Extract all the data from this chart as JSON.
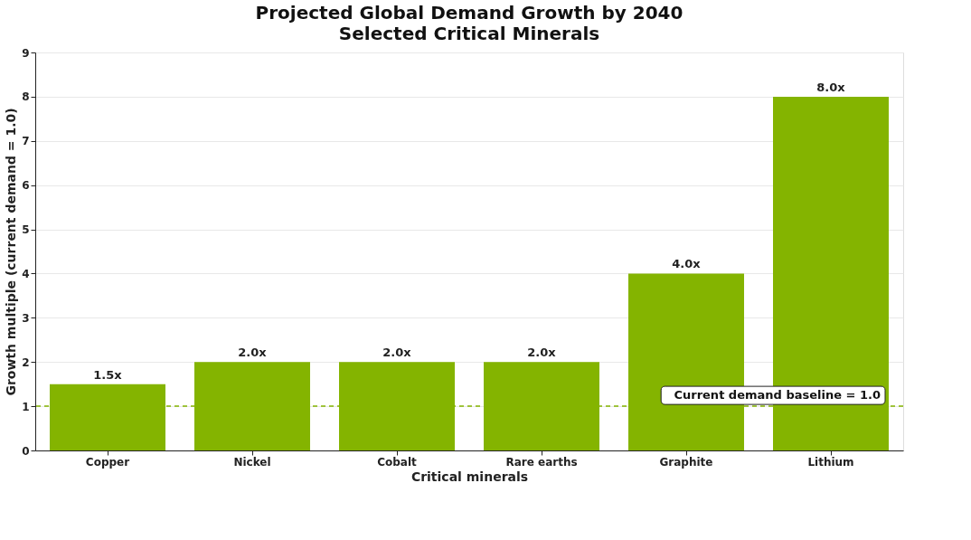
{
  "chart_data": {
    "type": "bar",
    "title": "Projected Global Demand Growth by 2040",
    "subtitle": "Selected Critical Minerals",
    "xlabel": "Critical minerals",
    "ylabel": "Growth multiple (current demand = 1.0)",
    "categories": [
      "Copper",
      "Nickel",
      "Cobalt",
      "Rare earths",
      "Graphite",
      "Lithium"
    ],
    "values": [
      1.5,
      2.0,
      2.0,
      2.0,
      4.0,
      8.0
    ],
    "value_labels": [
      "1.5x",
      "2.0x",
      "2.0x",
      "2.0x",
      "4.0x",
      "8.0x"
    ],
    "color": "#84b400",
    "ylim": [
      0,
      9
    ],
    "yticks": [
      0,
      1,
      2,
      3,
      4,
      5,
      6,
      7,
      8,
      9
    ],
    "grid": "y",
    "ref_lines": [
      {
        "axis": "y",
        "value": 1.0,
        "label": "Current demand baseline = 1.0",
        "color": "#84b400",
        "line_style": "dashed"
      }
    ]
  }
}
